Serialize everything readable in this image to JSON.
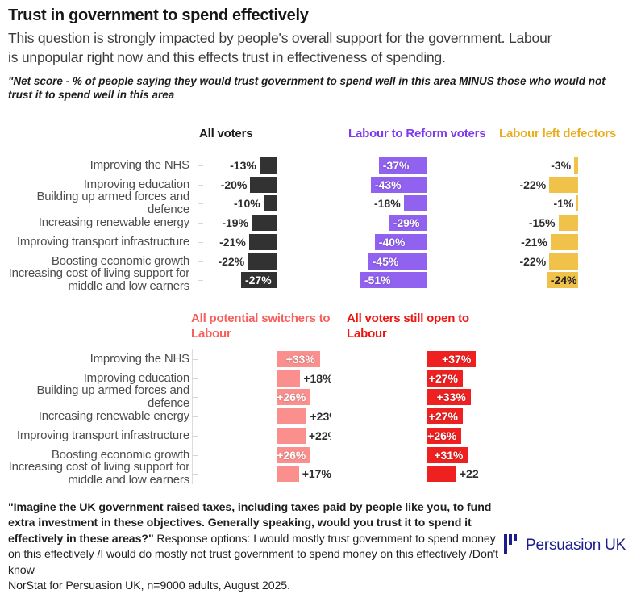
{
  "title": "Trust in government to spend effectively",
  "subtitle": "This question is strongly impacted by people's overall support for the government. Labour is unpopular right now and this effects trust in effectiveness of spending.",
  "note": "\"Net score - % of people saying they would trust government to spend well in this area MINUS those who would not trust it to spend well in this area",
  "chart_data": [
    {
      "id": "net-trust-top",
      "type": "bar",
      "orientation": "horizontal",
      "unit": "%",
      "xlim": [
        -60,
        0
      ],
      "categories": [
        "Improving the NHS",
        "Improving education",
        "Building up armed forces and defence",
        "Increasing renewable energy",
        "Improving transport infrastructure",
        "Boosting economic growth",
        "Increasing cost of living support for middle and low earners"
      ],
      "series": [
        {
          "name": "All voters",
          "color": "#323232",
          "header_color": "#1a1a1a",
          "inside_label_color": "#ffffff",
          "values": [
            -13,
            -20,
            -10,
            -19,
            -21,
            -22,
            -27
          ]
        },
        {
          "name": "Labour to Reform voters",
          "color": "#9161f0",
          "header_color": "#7d3bed",
          "inside_label_color": "#ffffff",
          "values": [
            -37,
            -43,
            -18,
            -29,
            -40,
            -45,
            -51
          ]
        },
        {
          "name": "Labour left defectors",
          "color": "#f0c24a",
          "header_color": "#e9ad1d",
          "inside_label_color": "#1f1f1f",
          "values": [
            -3,
            -22,
            -1,
            -15,
            -21,
            -22,
            -24
          ]
        }
      ]
    },
    {
      "id": "net-trust-bottom",
      "type": "bar",
      "orientation": "horizontal",
      "unit": "%",
      "xlim": [
        0,
        40
      ],
      "categories": [
        "Improving the NHS",
        "Improving education",
        "Building up armed forces and defence",
        "Increasing renewable energy",
        "Improving transport infrastructure",
        "Boosting economic growth",
        "Increasing cost of living support for middle and low earners"
      ],
      "series": [
        {
          "name": "All potential switchers to Labour",
          "color": "#fb8f8d",
          "header_color": "#f7605c",
          "inside_label_color": "#ffffff",
          "values": [
            33,
            18,
            26,
            23,
            22,
            26,
            17
          ]
        },
        {
          "name": "All voters still open to Labour",
          "color": "#ef2020",
          "header_color": "#ee1511",
          "inside_label_color": "#ffffff",
          "values": [
            37,
            27,
            33,
            27,
            26,
            31,
            22
          ]
        }
      ]
    }
  ],
  "footer": {
    "question": "\"Imagine the UK government raised taxes, including taxes paid by people like you, to fund extra investment in these objectives. Generally speaking, would you trust it to spend it effectively in these areas?\"",
    "response_options": " Response options: I would mostly trust government to spend money on this effectively /I would do mostly not trust government to spend money on this effectively /Don't know",
    "source": "NorStat for Persuasion UK, n=9000 adults, August 2025."
  },
  "logo": {
    "text": "Persuasion UK",
    "color": "#1b1d8e"
  }
}
